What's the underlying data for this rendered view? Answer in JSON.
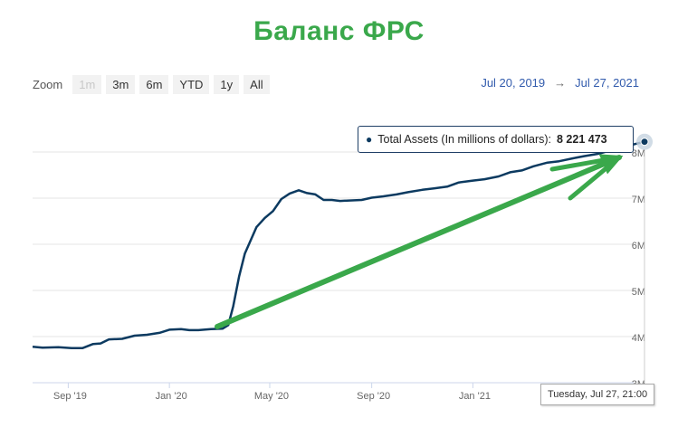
{
  "title": "Баланс ФРС",
  "toolbar": {
    "zoom_label": "Zoom",
    "buttons": [
      "1m",
      "3m",
      "6m",
      "YTD",
      "1y",
      "All"
    ],
    "from": "Jul 20, 2019",
    "arrow": "→",
    "to": "Jul 27, 2021"
  },
  "tooltip": {
    "series": "Total Assets (In millions of dollars):",
    "value": "8 221 473"
  },
  "crosshair_label": "Tuesday, Jul 27, 21:00",
  "colors": {
    "line": "#0c3a60",
    "arrow": "#3aa84b",
    "title": "#3aa84b"
  },
  "chart_data": {
    "type": "line",
    "title": "Баланс ФРС",
    "xlabel": "",
    "ylabel": "",
    "ylim": [
      3000000,
      8400000
    ],
    "xlim": [
      "2019-07-20",
      "2021-07-27"
    ],
    "y_ticks": [
      "3M",
      "4M",
      "5M",
      "6M",
      "7M",
      "8M"
    ],
    "x_ticks": [
      "Sep '19",
      "Jan '20",
      "May '20",
      "Sep '20",
      "Jan '21"
    ],
    "grid": true,
    "series": [
      {
        "name": "Total Assets (In millions of dollars)",
        "points": [
          [
            "2019-07-20",
            3780000
          ],
          [
            "2019-08-01",
            3760000
          ],
          [
            "2019-08-20",
            3770000
          ],
          [
            "2019-09-05",
            3750000
          ],
          [
            "2019-09-18",
            3750000
          ],
          [
            "2019-10-01",
            3840000
          ],
          [
            "2019-10-10",
            3850000
          ],
          [
            "2019-10-20",
            3940000
          ],
          [
            "2019-11-05",
            3950000
          ],
          [
            "2019-11-20",
            4020000
          ],
          [
            "2019-12-05",
            4040000
          ],
          [
            "2019-12-20",
            4080000
          ],
          [
            "2020-01-01",
            4150000
          ],
          [
            "2020-01-15",
            4160000
          ],
          [
            "2020-01-25",
            4140000
          ],
          [
            "2020-02-05",
            4140000
          ],
          [
            "2020-02-20",
            4160000
          ],
          [
            "2020-03-05",
            4170000
          ],
          [
            "2020-03-12",
            4250000
          ],
          [
            "2020-03-18",
            4660000
          ],
          [
            "2020-03-25",
            5300000
          ],
          [
            "2020-04-01",
            5800000
          ],
          [
            "2020-04-15",
            6370000
          ],
          [
            "2020-04-25",
            6570000
          ],
          [
            "2020-05-05",
            6720000
          ],
          [
            "2020-05-15",
            6980000
          ],
          [
            "2020-05-25",
            7100000
          ],
          [
            "2020-06-05",
            7170000
          ],
          [
            "2020-06-15",
            7110000
          ],
          [
            "2020-06-25",
            7080000
          ],
          [
            "2020-07-05",
            6960000
          ],
          [
            "2020-07-15",
            6960000
          ],
          [
            "2020-07-25",
            6940000
          ],
          [
            "2020-08-05",
            6950000
          ],
          [
            "2020-08-20",
            6960000
          ],
          [
            "2020-09-01",
            7010000
          ],
          [
            "2020-09-15",
            7040000
          ],
          [
            "2020-10-01",
            7080000
          ],
          [
            "2020-10-15",
            7130000
          ],
          [
            "2020-11-01",
            7180000
          ],
          [
            "2020-11-15",
            7210000
          ],
          [
            "2020-12-01",
            7250000
          ],
          [
            "2020-12-15",
            7340000
          ],
          [
            "2021-01-01",
            7380000
          ],
          [
            "2021-01-15",
            7410000
          ],
          [
            "2021-02-01",
            7470000
          ],
          [
            "2021-02-15",
            7560000
          ],
          [
            "2021-03-01",
            7600000
          ],
          [
            "2021-03-15",
            7690000
          ],
          [
            "2021-04-01",
            7770000
          ],
          [
            "2021-04-15",
            7800000
          ],
          [
            "2021-05-01",
            7860000
          ],
          [
            "2021-05-15",
            7910000
          ],
          [
            "2021-06-01",
            7960000
          ],
          [
            "2021-06-15",
            8030000
          ],
          [
            "2021-07-01",
            8090000
          ],
          [
            "2021-07-15",
            8170000
          ],
          [
            "2021-07-27",
            8221473
          ]
        ]
      }
    ]
  }
}
